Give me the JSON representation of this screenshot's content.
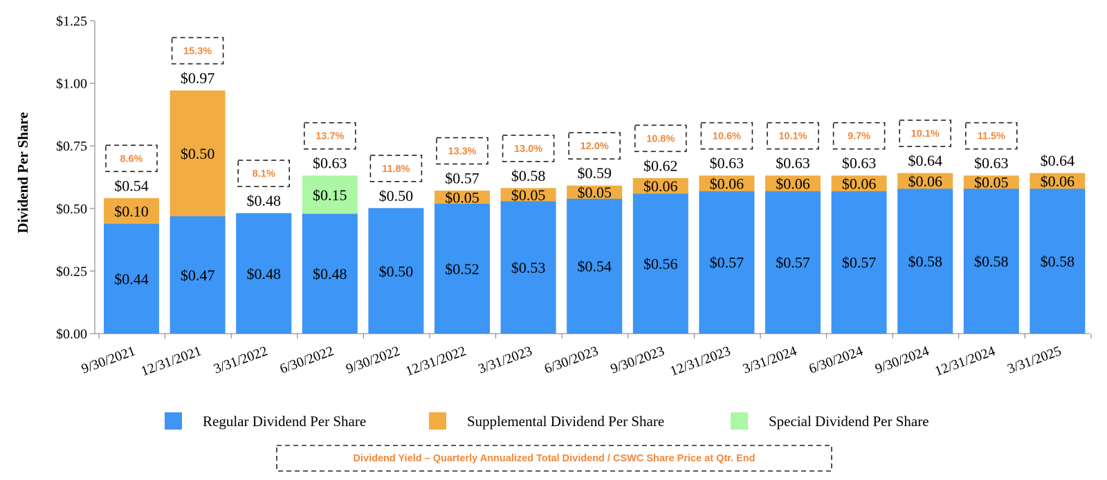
{
  "chart_data": {
    "type": "bar",
    "stacked": true,
    "ylabel": "Dividend Per Share",
    "ylim": [
      0,
      1.25
    ],
    "yticks": [
      "$0.00",
      "$0.25",
      "$0.50",
      "$0.75",
      "$1.00",
      "$1.25"
    ],
    "categories": [
      "9/30/2021",
      "12/31/2021",
      "3/31/2022",
      "6/30/2022",
      "9/30/2022",
      "12/31/2022",
      "3/31/2023",
      "6/30/2023",
      "9/30/2023",
      "12/31/2023",
      "3/31/2024",
      "6/30/2024",
      "9/30/2024",
      "12/31/2024",
      "3/31/2025"
    ],
    "series": [
      {
        "name": "Regular Dividend Per Share",
        "color": "#3d95f5",
        "values": [
          0.44,
          0.47,
          0.48,
          0.48,
          0.5,
          0.52,
          0.53,
          0.54,
          0.56,
          0.57,
          0.57,
          0.57,
          0.58,
          0.58,
          0.58
        ],
        "labels": [
          "$0.44",
          "$0.47",
          "$0.48",
          "$0.48",
          "$0.50",
          "$0.52",
          "$0.53",
          "$0.54",
          "$0.56",
          "$0.57",
          "$0.57",
          "$0.57",
          "$0.58",
          "$0.58",
          "$0.58"
        ]
      },
      {
        "name": "Supplemental Dividend Per Share",
        "color": "#f1ad42",
        "values": [
          0.1,
          0.5,
          0,
          0,
          0,
          0.05,
          0.05,
          0.05,
          0.06,
          0.06,
          0.06,
          0.06,
          0.06,
          0.05,
          0.06
        ],
        "labels": [
          "$0.10",
          "$0.50",
          "",
          "",
          "",
          "$0.05",
          "$0.05",
          "$0.05",
          "$0.06",
          "$0.06",
          "$0.06",
          "$0.06",
          "$0.06",
          "$0.05",
          "$0.06"
        ]
      },
      {
        "name": "Special Dividend Per Share",
        "color": "#abf7a3",
        "values": [
          0,
          0,
          0,
          0.15,
          0,
          0,
          0,
          0,
          0,
          0,
          0,
          0,
          0,
          0,
          0
        ],
        "labels": [
          "",
          "",
          "",
          "$0.15",
          "",
          "",
          "",
          "",
          "",
          "",
          "",
          "",
          "",
          "",
          ""
        ]
      }
    ],
    "totals": [
      0.54,
      0.97,
      0.48,
      0.63,
      0.5,
      0.57,
      0.58,
      0.59,
      0.62,
      0.63,
      0.63,
      0.63,
      0.64,
      0.63,
      0.64
    ],
    "total_labels": [
      "$0.54",
      "$0.97",
      "$0.48",
      "$0.63",
      "$0.50",
      "$0.57",
      "$0.58",
      "$0.59",
      "$0.62",
      "$0.63",
      "$0.63",
      "$0.63",
      "$0.64",
      "$0.63",
      "$0.64"
    ],
    "yield_labels": [
      "8.6%",
      "15.3%",
      "8.1%",
      "13.7%",
      "11.8%",
      "13.3%",
      "13.0%",
      "12.0%",
      "10.8%",
      "10.6%",
      "10.1%",
      "9.7%",
      "10.1%",
      "11.5%",
      ""
    ],
    "yield_color": "#f0883a",
    "yield_legend": "Dividend Yield – Quarterly Annualized Total Dividend / CSWC Share Price at Qtr. End",
    "legend_position": "bottom",
    "grid": false
  }
}
